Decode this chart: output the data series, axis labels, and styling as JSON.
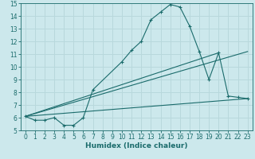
{
  "xlabel": "Humidex (Indice chaleur)",
  "background_color": "#cce8ec",
  "grid_color": "#b8d8dc",
  "line_color": "#1a6b6b",
  "xlim": [
    -0.5,
    23.5
  ],
  "ylim": [
    5,
    15
  ],
  "xticks": [
    0,
    1,
    2,
    3,
    4,
    5,
    6,
    7,
    8,
    9,
    10,
    11,
    12,
    13,
    14,
    15,
    16,
    17,
    18,
    19,
    20,
    21,
    22,
    23
  ],
  "yticks": [
    5,
    6,
    7,
    8,
    9,
    10,
    11,
    12,
    13,
    14,
    15
  ],
  "curve1_x": [
    0,
    1,
    2,
    3,
    4,
    5,
    6,
    7,
    10,
    11,
    12,
    13,
    14,
    15,
    16,
    17,
    18,
    19,
    20,
    21,
    22,
    23
  ],
  "curve1_y": [
    6.1,
    5.8,
    5.8,
    6.0,
    5.4,
    5.4,
    6.0,
    8.2,
    10.4,
    11.3,
    12.0,
    13.7,
    14.3,
    14.9,
    14.7,
    13.2,
    11.2,
    9.0,
    11.1,
    7.7,
    7.6,
    7.5
  ],
  "curve2_x": [
    0,
    23
  ],
  "curve2_y": [
    6.1,
    11.2
  ],
  "curve3_x": [
    0,
    23
  ],
  "curve3_y": [
    6.1,
    7.5
  ],
  "curve4_x": [
    0,
    20
  ],
  "curve4_y": [
    6.1,
    11.1
  ]
}
